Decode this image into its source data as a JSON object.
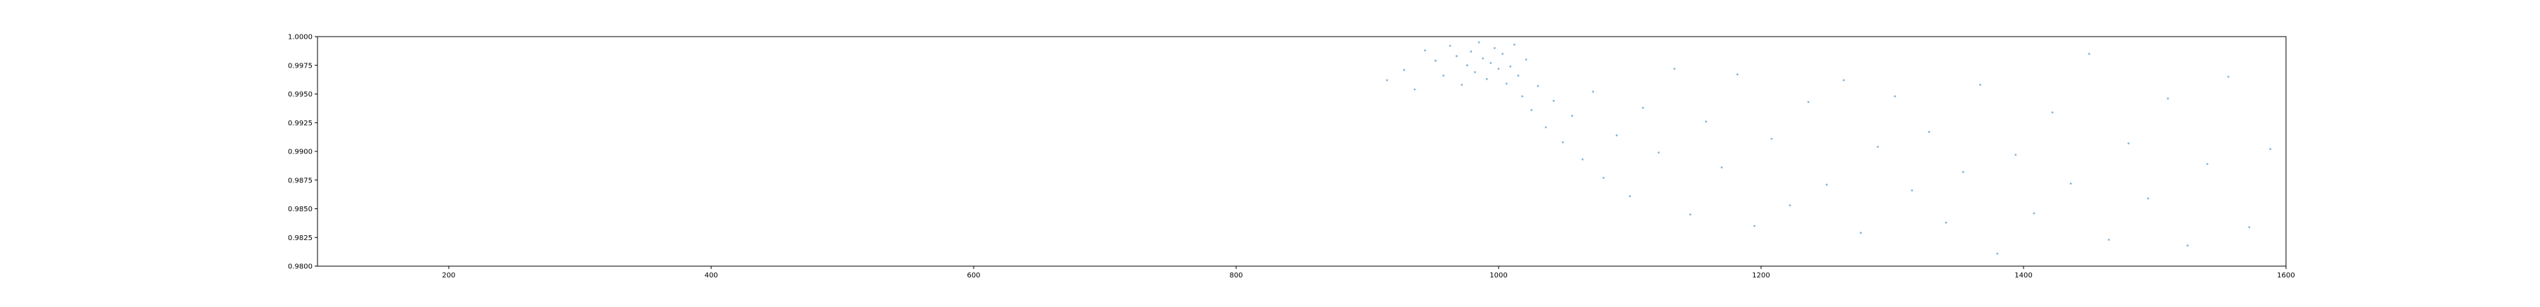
{
  "chart_data": {
    "type": "scatter",
    "title": "",
    "xlabel": "",
    "ylabel": "",
    "xlim": [
      100,
      1600
    ],
    "ylim": [
      0.98,
      1.0
    ],
    "x_ticks": [
      200,
      400,
      600,
      800,
      1000,
      1200,
      1400,
      1600
    ],
    "x_tick_labels": [
      "200",
      "400",
      "600",
      "800",
      "1000",
      "1200",
      "1400",
      "1600"
    ],
    "y_ticks": [
      0.98,
      0.9825,
      0.985,
      0.9875,
      0.99,
      0.9925,
      0.995,
      0.9975,
      1.0
    ],
    "y_tick_labels": [
      "0.9800",
      "0.9825",
      "0.9850",
      "0.9875",
      "0.9900",
      "0.9925",
      "0.9950",
      "0.9975",
      "1.0000"
    ],
    "grid": false,
    "legend": "none",
    "marker_color": "#1f77b4",
    "series": [
      {
        "x": [
          915,
          928,
          936,
          944,
          952,
          958,
          963,
          968,
          972,
          976,
          979,
          982,
          985,
          988,
          991,
          994,
          997,
          1000,
          1003,
          1006,
          1009,
          1012,
          1015,
          1018,
          1021,
          1025,
          1030,
          1036,
          1042,
          1049,
          1056,
          1064,
          1072,
          1080,
          1090,
          1100,
          1110,
          1122,
          1134,
          1146,
          1158,
          1170,
          1182,
          1195,
          1208,
          1222,
          1236,
          1250,
          1263,
          1276,
          1289,
          1302,
          1315,
          1328,
          1341,
          1354,
          1367,
          1380,
          1394,
          1408,
          1422,
          1436,
          1450,
          1465,
          1480,
          1495,
          1510,
          1525,
          1540,
          1556,
          1572,
          1588
        ],
        "y": [
          0.9962,
          0.9971,
          0.9954,
          0.9988,
          0.9979,
          0.9966,
          0.9992,
          0.9983,
          0.9958,
          0.9975,
          0.9987,
          0.9969,
          0.9995,
          0.9981,
          0.9963,
          0.9977,
          0.999,
          0.9972,
          0.9985,
          0.9959,
          0.9974,
          0.9993,
          0.9966,
          0.9948,
          0.998,
          0.9936,
          0.9957,
          0.9921,
          0.9944,
          0.9908,
          0.9931,
          0.9893,
          0.9952,
          0.9877,
          0.9914,
          0.9861,
          0.9938,
          0.9899,
          0.9972,
          0.9845,
          0.9926,
          0.9886,
          0.9967,
          0.9835,
          0.9911,
          0.9853,
          0.9943,
          0.9871,
          0.9962,
          0.9829,
          0.9904,
          0.9948,
          0.9866,
          0.9917,
          0.9838,
          0.9882,
          0.9958,
          0.9811,
          0.9897,
          0.9846,
          0.9934,
          0.9872,
          0.9985,
          0.9823,
          0.9907,
          0.9859,
          0.9946,
          0.9818,
          0.9889,
          0.9965,
          0.9834,
          0.9902
        ]
      }
    ]
  }
}
